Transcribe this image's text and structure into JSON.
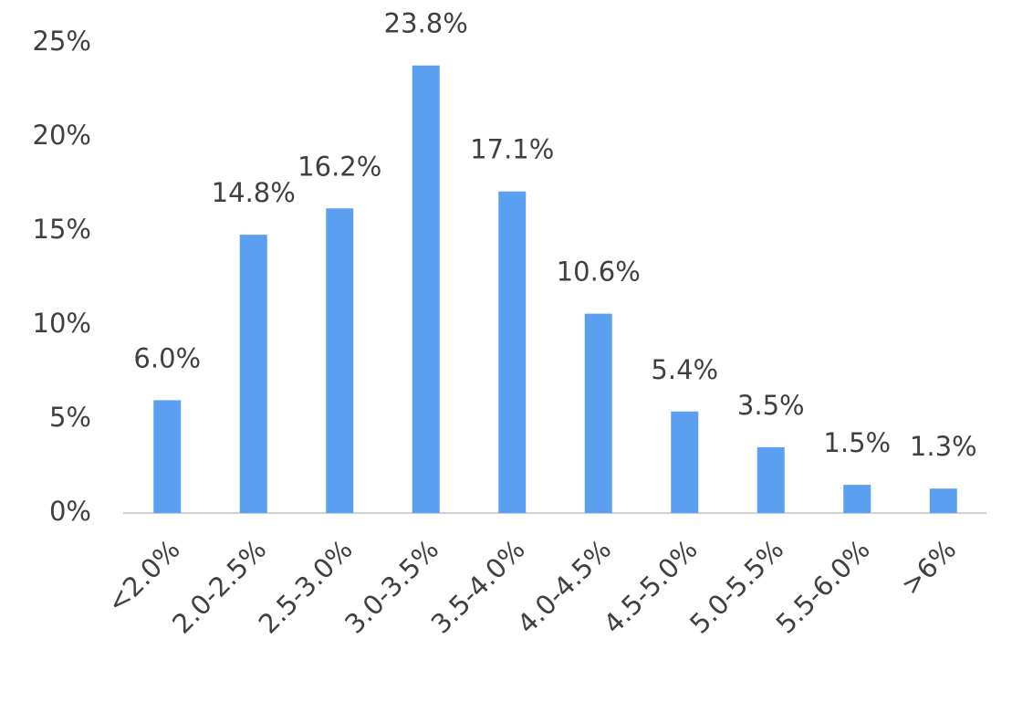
{
  "chart_data": {
    "type": "bar",
    "categories": [
      "<2.0%",
      "2.0-2.5%",
      "2.5-3.0%",
      "3.0-3.5%",
      "3.5-4.0%",
      "4.0-4.5%",
      "4.5-5.0%",
      "5.0-5.5%",
      "5.5-6.0%",
      ">6%"
    ],
    "values": [
      6.0,
      14.8,
      16.2,
      23.8,
      17.1,
      10.6,
      5.4,
      3.5,
      1.5,
      1.3
    ],
    "value_labels": [
      "6.0%",
      "14.8%",
      "16.2%",
      "23.8%",
      "17.1%",
      "10.6%",
      "5.4%",
      "3.5%",
      "1.5%",
      "1.3%"
    ],
    "color": "#5b9ff0",
    "ylim": [
      0,
      25
    ],
    "yticks": [
      {
        "value": 0,
        "label": "0%"
      },
      {
        "value": 5,
        "label": "5%"
      },
      {
        "value": 10,
        "label": "10%"
      },
      {
        "value": 15,
        "label": "15%"
      },
      {
        "value": 20,
        "label": "20%"
      },
      {
        "value": 25,
        "label": "25%"
      }
    ],
    "grid": false
  }
}
